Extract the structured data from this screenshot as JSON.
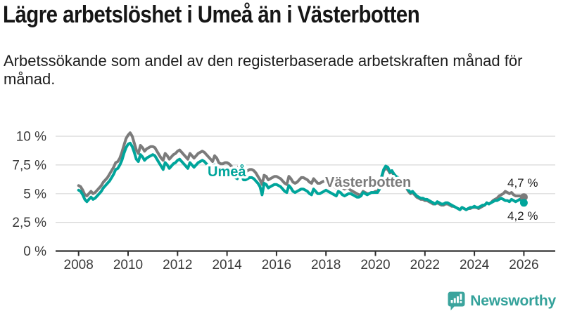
{
  "header": {
    "title": "Lägre arbetslöshet i Umeå än i Västerbotten",
    "subtitle": "Arbetssökande som andel av den registerbaserade arbetskraften månad för månad."
  },
  "footer": {
    "brand": "Newsworthy",
    "logo_icon": "newsworthy-speech-bubble-bar-chart-icon"
  },
  "colors": {
    "umea": "#00a59b",
    "vasterbotten": "#7b7b7b",
    "grid": "#d8d8d8",
    "axis": "#2e2e2e",
    "tick_label": "#3a3a3a",
    "title_text": "#161616",
    "end_label": "#222222",
    "brand": "#3ba49d",
    "background": "#ffffff"
  },
  "chart_data": {
    "type": "line",
    "title": "Lägre arbetslöshet i Umeå än i Västerbotten",
    "subtitle": "Arbetssökande som andel av den registerbaserade arbetskraften månad för månad.",
    "x_unit": "month",
    "x_start": "2008-01",
    "x_end": "2026-01",
    "x_ticks": [
      2008,
      2010,
      2012,
      2014,
      2016,
      2018,
      2020,
      2022,
      2024,
      2026
    ],
    "y_ticks": [
      {
        "value": 0,
        "label": "0 %"
      },
      {
        "value": 2.5,
        "label": "2,5 %"
      },
      {
        "value": 5,
        "label": "5 %"
      },
      {
        "value": 7.5,
        "label": "7,5 %"
      },
      {
        "value": 10,
        "label": "10 %"
      }
    ],
    "ylim": [
      0,
      10.9
    ],
    "grid": true,
    "legend": "inline-labels",
    "series": [
      {
        "name": "Västerbotten",
        "color": "#7b7b7b",
        "end_label": "4,7 %",
        "end_value": 4.7,
        "values": [
          5.7,
          5.6,
          5.3,
          4.9,
          4.8,
          5.0,
          5.2,
          5.0,
          5.1,
          5.3,
          5.5,
          5.7,
          6.0,
          6.2,
          6.4,
          6.7,
          7.0,
          7.3,
          7.7,
          7.8,
          8.1,
          8.6,
          9.2,
          9.8,
          10.1,
          10.3,
          10.0,
          9.4,
          8.8,
          8.5,
          9.2,
          9.0,
          8.7,
          8.9,
          9.0,
          9.1,
          9.1,
          9.0,
          8.7,
          8.4,
          8.1,
          7.9,
          8.5,
          8.3,
          8.0,
          8.2,
          8.4,
          8.5,
          8.7,
          8.8,
          8.6,
          8.4,
          8.2,
          8.0,
          8.5,
          8.3,
          8.1,
          8.3,
          8.5,
          8.6,
          8.7,
          8.6,
          8.4,
          8.2,
          8.0,
          7.8,
          8.3,
          8.1,
          7.7,
          7.6,
          7.6,
          7.7,
          7.7,
          7.6,
          7.4,
          7.2,
          7.1,
          7.0,
          7.5,
          7.3,
          6.9,
          6.9,
          7.0,
          7.1,
          7.1,
          7.0,
          6.8,
          6.5,
          6.2,
          5.8,
          6.6,
          6.5,
          6.2,
          6.3,
          6.4,
          6.5,
          6.5,
          6.4,
          6.3,
          6.1,
          5.9,
          5.8,
          6.5,
          6.3,
          6.0,
          5.9,
          6.0,
          6.2,
          6.4,
          6.4,
          6.3,
          6.2,
          6.0,
          5.9,
          6.3,
          6.1,
          5.9,
          5.9,
          6.0,
          6.1,
          6.1,
          6.0,
          5.9,
          5.8,
          5.6,
          5.5,
          5.8,
          5.7,
          5.5,
          5.4,
          5.5,
          5.5,
          5.3,
          5.2,
          5.1,
          5.0,
          4.9,
          4.9,
          5.2,
          5.1,
          5.0,
          5.0,
          5.1,
          5.1,
          5.2,
          5.2,
          5.5,
          6.4,
          7.0,
          7.2,
          7.1,
          6.8,
          6.9,
          6.6,
          6.4,
          6.3,
          6.2,
          6.0,
          5.8,
          5.5,
          5.2,
          5.0,
          5.1,
          4.9,
          4.7,
          4.6,
          4.5,
          4.5,
          4.4,
          4.4,
          4.3,
          4.2,
          4.1,
          4.1,
          4.2,
          4.1,
          4.0,
          4.0,
          4.1,
          4.1,
          4.0,
          3.9,
          3.9,
          3.8,
          3.7,
          3.6,
          3.8,
          3.7,
          3.6,
          3.7,
          3.7,
          3.8,
          3.8,
          3.8,
          3.7,
          3.8,
          3.9,
          4.0,
          4.2,
          4.1,
          4.2,
          4.4,
          4.5,
          4.6,
          4.8,
          4.9,
          5.0,
          5.2,
          5.1,
          5.0,
          5.1,
          4.9,
          4.8,
          4.8,
          4.8,
          4.7,
          4.7
        ]
      },
      {
        "name": "Umeå",
        "color": "#00a59b",
        "end_label": "4,2 %",
        "end_value": 4.2,
        "values": [
          5.3,
          5.2,
          4.9,
          4.5,
          4.3,
          4.5,
          4.7,
          4.5,
          4.6,
          4.8,
          5.0,
          5.2,
          5.5,
          5.7,
          5.9,
          6.1,
          6.4,
          6.7,
          7.1,
          7.2,
          7.5,
          7.9,
          8.5,
          9.0,
          9.3,
          9.4,
          9.1,
          8.6,
          8.0,
          7.8,
          8.4,
          8.2,
          7.9,
          8.1,
          8.2,
          8.3,
          8.4,
          8.3,
          8.0,
          7.7,
          7.4,
          7.1,
          7.7,
          7.5,
          7.2,
          7.4,
          7.6,
          7.7,
          7.9,
          8.0,
          7.8,
          7.6,
          7.4,
          7.2,
          7.7,
          7.5,
          7.3,
          7.5,
          7.7,
          7.8,
          7.9,
          7.8,
          7.6,
          7.4,
          7.2,
          7.0,
          7.5,
          7.3,
          6.9,
          6.8,
          6.8,
          6.9,
          6.9,
          6.8,
          6.6,
          6.5,
          6.4,
          6.3,
          6.8,
          6.6,
          6.2,
          6.2,
          6.3,
          6.4,
          6.4,
          6.3,
          6.1,
          5.9,
          5.6,
          4.9,
          5.9,
          5.8,
          5.5,
          5.6,
          5.7,
          5.8,
          5.8,
          5.7,
          5.6,
          5.4,
          5.2,
          5.1,
          5.7,
          5.5,
          5.2,
          5.1,
          5.2,
          5.3,
          5.4,
          5.4,
          5.3,
          5.2,
          5.0,
          4.9,
          5.4,
          5.2,
          5.0,
          5.0,
          5.1,
          5.2,
          5.3,
          5.2,
          5.1,
          5.0,
          4.9,
          4.8,
          5.2,
          5.1,
          4.9,
          4.8,
          4.9,
          5.0,
          5.0,
          4.9,
          4.8,
          4.7,
          4.7,
          4.8,
          5.1,
          5.0,
          4.9,
          5.0,
          5.1,
          5.1,
          5.1,
          5.1,
          5.4,
          6.5,
          7.1,
          7.4,
          7.3,
          6.9,
          7.0,
          6.7,
          6.5,
          6.4,
          6.3,
          6.1,
          5.9,
          5.6,
          5.3,
          5.1,
          5.2,
          5.0,
          4.8,
          4.7,
          4.6,
          4.6,
          4.5,
          4.5,
          4.4,
          4.3,
          4.2,
          4.1,
          4.3,
          4.2,
          4.1,
          4.1,
          4.2,
          4.2,
          4.1,
          4.0,
          3.9,
          3.8,
          3.7,
          3.6,
          3.8,
          3.7,
          3.6,
          3.7,
          3.8,
          3.8,
          3.9,
          3.8,
          3.8,
          3.9,
          4.0,
          4.0,
          4.2,
          4.1,
          4.2,
          4.3,
          4.4,
          4.4,
          4.5,
          4.6,
          4.5,
          4.4,
          4.4,
          4.3,
          4.5,
          4.4,
          4.3,
          4.4,
          4.5,
          4.4,
          4.2
        ]
      }
    ]
  }
}
